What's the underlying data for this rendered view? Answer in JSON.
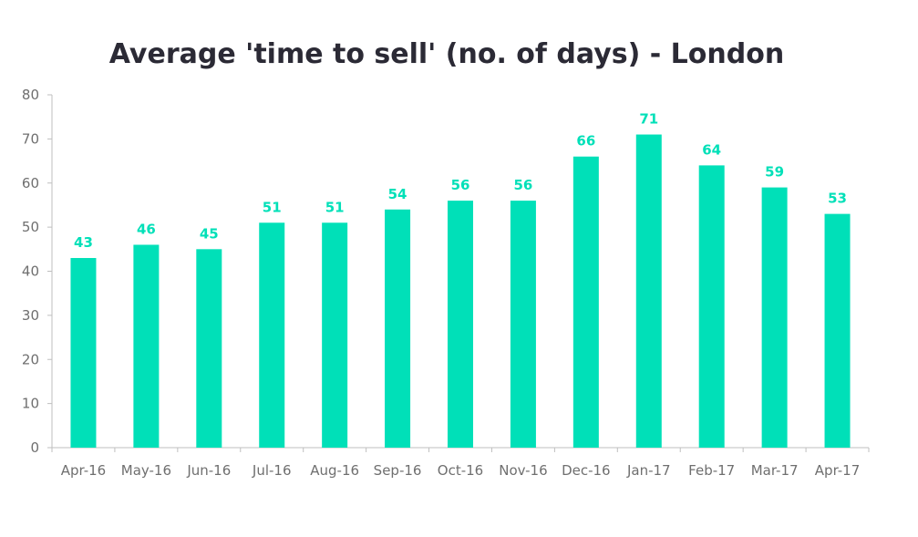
{
  "chart_data": {
    "type": "bar",
    "title": "Average 'time to sell' (no. of days) - London",
    "xlabel": "",
    "ylabel": "",
    "categories": [
      "Apr-16",
      "May-16",
      "Jun-16",
      "Jul-16",
      "Aug-16",
      "Sep-16",
      "Oct-16",
      "Nov-16",
      "Dec-16",
      "Jan-17",
      "Feb-17",
      "Mar-17",
      "Apr-17"
    ],
    "values": [
      43,
      46,
      45,
      51,
      51,
      54,
      56,
      56,
      66,
      71,
      64,
      59,
      53
    ],
    "ylim": [
      0,
      80
    ],
    "yticks": [
      0,
      10,
      20,
      30,
      40,
      50,
      60,
      70,
      80
    ],
    "grid": false,
    "legend": "none",
    "bar_color": "#00e0b8",
    "label_color": "#00e0b8",
    "axis_color": "#bfbfbf"
  }
}
